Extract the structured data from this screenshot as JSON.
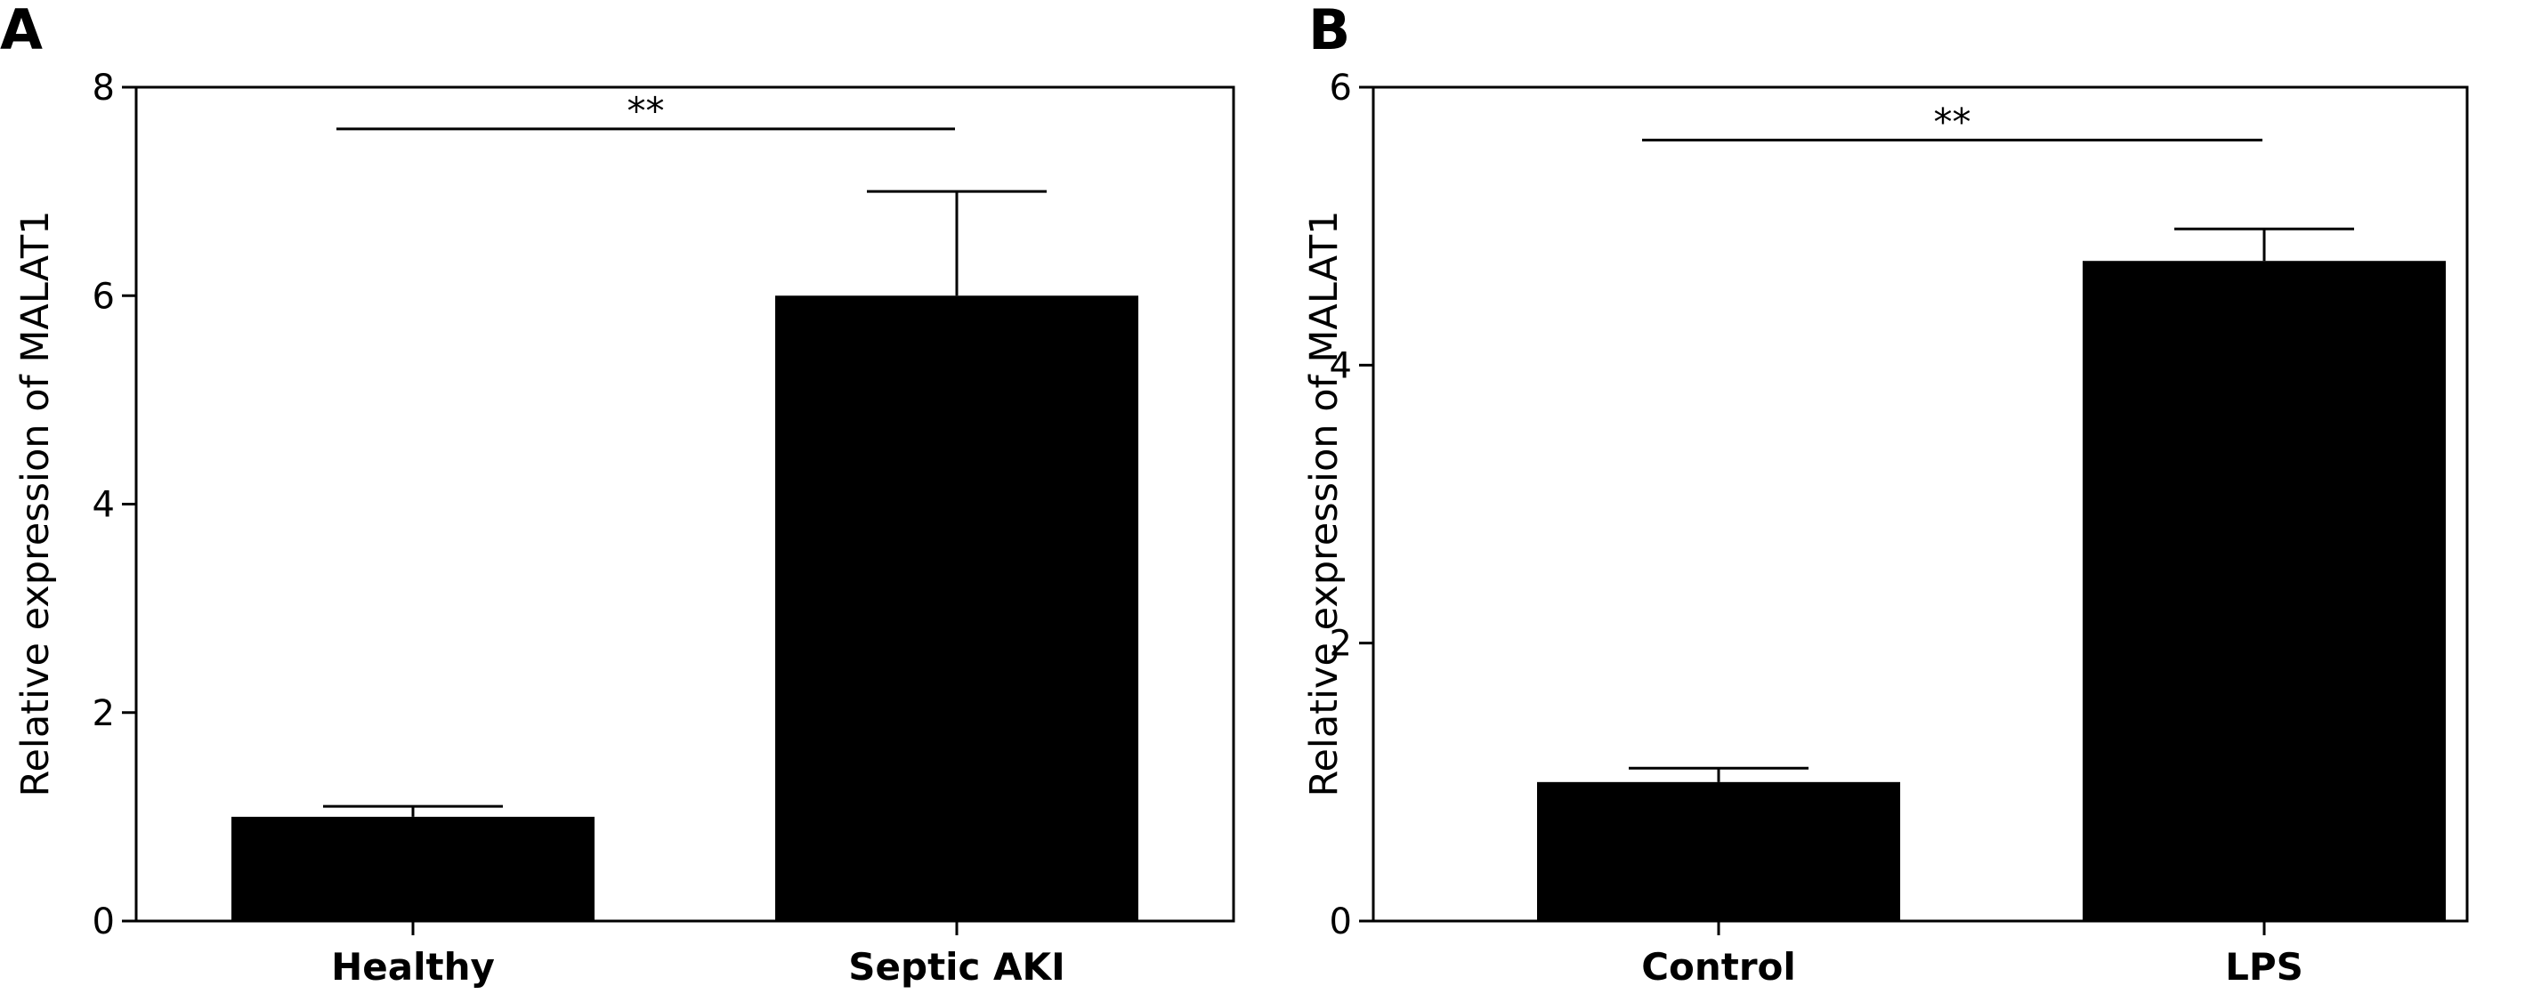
{
  "figure": {
    "colors": {
      "bar": "#000000",
      "axis": "#000000",
      "background": "#ffffff"
    }
  },
  "chart_data": [
    {
      "type": "bar",
      "panel_label": "A",
      "categories": [
        "Healthy",
        "Septic AKI"
      ],
      "values": [
        1.0,
        6.0
      ],
      "errors": [
        0.1,
        1.0
      ],
      "ylabel": "Relative expression of MALAT1",
      "xlabel": "",
      "ylim": [
        0,
        8
      ],
      "yticks": [
        0,
        2,
        4,
        6,
        8
      ],
      "ytick_labels": [
        "0",
        "2",
        "4",
        "6",
        "8"
      ],
      "significance": {
        "from": 0,
        "to": 1,
        "label": "**",
        "y": 7.6
      },
      "grid": false,
      "legend": "none"
    },
    {
      "type": "bar",
      "panel_label": "B",
      "categories": [
        "Control",
        "LPS"
      ],
      "values": [
        1.0,
        4.75
      ],
      "errors": [
        0.1,
        0.23
      ],
      "ylabel": "Relative expression of MALAT1",
      "xlabel": "",
      "ylim": [
        0,
        6
      ],
      "yticks": [
        0,
        2,
        4,
        6
      ],
      "ytick_labels": [
        "0",
        "2",
        "4",
        "6"
      ],
      "significance": {
        "from": 0,
        "to": 1,
        "label": "**",
        "y": 5.62
      },
      "grid": false,
      "legend": "none"
    }
  ]
}
